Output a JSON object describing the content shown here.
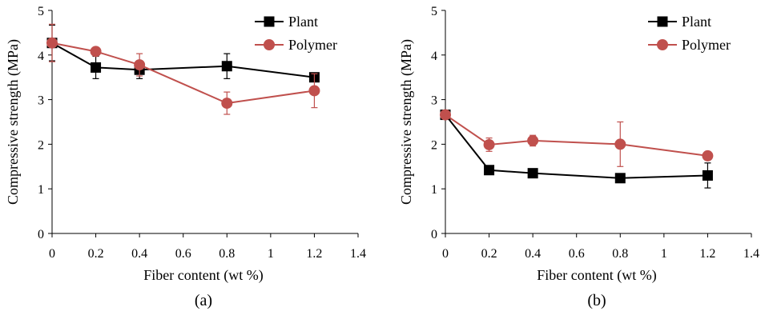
{
  "chart_data": [
    {
      "type": "line",
      "panel_label": "(a)",
      "xlabel": "Fiber content (wt %)",
      "ylabel": "Compressive strength (MPa)",
      "xlim": [
        0,
        1.4
      ],
      "ylim": [
        0,
        5
      ],
      "x_ticks": [
        "0",
        "0.2",
        "0.4",
        "0.6",
        "0.8",
        "1",
        "1.2",
        "1.4"
      ],
      "y_ticks": [
        "0",
        "1",
        "2",
        "3",
        "4",
        "5"
      ],
      "grid": false,
      "legend": "top-right",
      "series": [
        {
          "name": "Plant",
          "color": "#000000",
          "marker": "square",
          "x": [
            0,
            0.2,
            0.4,
            0.8,
            1.2
          ],
          "y": [
            4.27,
            3.72,
            3.67,
            3.75,
            3.5
          ],
          "err": [
            0.4,
            0.25,
            0.2,
            0.28,
            0.05
          ]
        },
        {
          "name": "Polymer",
          "color": "#C0504D",
          "marker": "circle",
          "x": [
            0,
            0.2,
            0.4,
            0.8,
            1.2
          ],
          "y": [
            4.27,
            4.08,
            3.78,
            2.92,
            3.2
          ],
          "err": [
            0.42,
            0.08,
            0.25,
            0.25,
            0.38
          ]
        }
      ]
    },
    {
      "type": "line",
      "panel_label": "(b)",
      "xlabel": "Fiber content (wt %)",
      "ylabel": "Compressive strength (MPa)",
      "xlim": [
        0,
        1.4
      ],
      "ylim": [
        0,
        5
      ],
      "x_ticks": [
        "0",
        "0.2",
        "0.4",
        "0.6",
        "0.8",
        "1",
        "1.2",
        "1.4"
      ],
      "y_ticks": [
        "0",
        "1",
        "2",
        "3",
        "4",
        "5"
      ],
      "grid": false,
      "legend": "top-right",
      "series": [
        {
          "name": "Plant",
          "color": "#000000",
          "marker": "square",
          "x": [
            0,
            0.2,
            0.4,
            0.8,
            1.2
          ],
          "y": [
            2.66,
            1.42,
            1.35,
            1.24,
            1.3
          ],
          "err": [
            0.08,
            0.05,
            0.05,
            0.06,
            0.28
          ]
        },
        {
          "name": "Polymer",
          "color": "#C0504D",
          "marker": "circle",
          "x": [
            0,
            0.2,
            0.4,
            0.8,
            1.2
          ],
          "y": [
            2.66,
            1.99,
            2.08,
            2.0,
            1.74
          ],
          "err": [
            0.05,
            0.15,
            0.12,
            0.5,
            0.04
          ]
        }
      ]
    }
  ]
}
